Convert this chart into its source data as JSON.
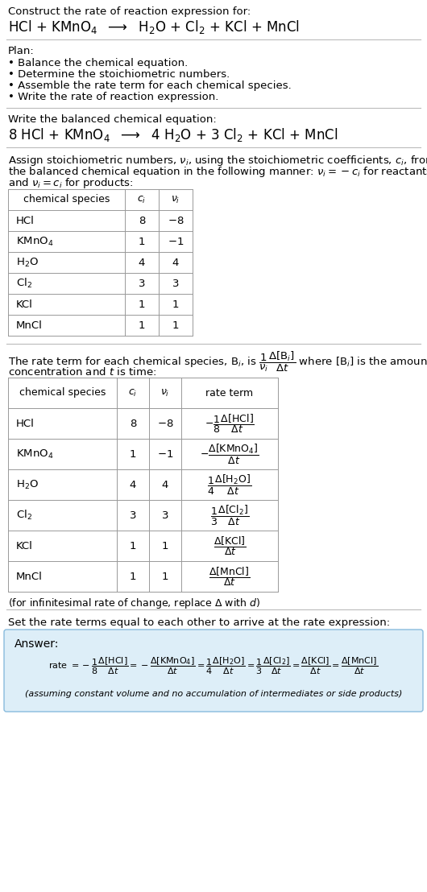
{
  "bg_color": "#ffffff",
  "text_color": "#000000",
  "title_line1": "Construct the rate of reaction expression for:",
  "plan_header": "Plan:",
  "plan_items": [
    "• Balance the chemical equation.",
    "• Determine the stoichiometric numbers.",
    "• Assemble the rate term for each chemical species.",
    "• Write the rate of reaction expression."
  ],
  "balanced_header": "Write the balanced chemical equation:",
  "stoich_intro_line1": "Assign stoichiometric numbers, $\\nu_i$, using the stoichiometric coefficients, $c_i$, from",
  "stoich_intro_line2": "the balanced chemical equation in the following manner: $\\nu_i = -c_i$ for reactants",
  "stoich_intro_line3": "and $\\nu_i = c_i$ for products:",
  "table1_headers": [
    "chemical species",
    "$c_i$",
    "$\\nu_i$"
  ],
  "table1_species": [
    "HCl",
    "KMnO$_4$",
    "H$_2$O",
    "Cl$_2$",
    "KCl",
    "MnCl"
  ],
  "table1_ci": [
    "8",
    "1",
    "4",
    "3",
    "1",
    "1"
  ],
  "table1_vi": [
    "$-$8",
    "$-$1",
    "4",
    "3",
    "1",
    "1"
  ],
  "rate_term_intro_line1": "The rate term for each chemical species, B$_i$, is $\\dfrac{1}{\\nu_i}\\dfrac{\\Delta[\\mathrm{B}_i]}{\\Delta t}$ where [B$_i$] is the amount",
  "rate_term_intro_line2": "concentration and $t$ is time:",
  "table2_headers": [
    "chemical species",
    "$c_i$",
    "$\\nu_i$",
    "rate term"
  ],
  "table2_species": [
    "HCl",
    "KMnO$_4$",
    "H$_2$O",
    "Cl$_2$",
    "KCl",
    "MnCl"
  ],
  "table2_ci": [
    "8",
    "1",
    "4",
    "3",
    "1",
    "1"
  ],
  "table2_vi": [
    "$-$8",
    "$-$1",
    "4",
    "3",
    "1",
    "1"
  ],
  "infinitesimal_note": "(for infinitesimal rate of change, replace $\\Delta$ with $d$)",
  "set_equal_text": "Set the rate terms equal to each other to arrive at the rate expression:",
  "answer_header": "Answer:",
  "answer_box_color": "#ddeef8",
  "answer_border_color": "#88bbdd",
  "answer_note": "(assuming constant volume and no accumulation of intermediates or side products)"
}
